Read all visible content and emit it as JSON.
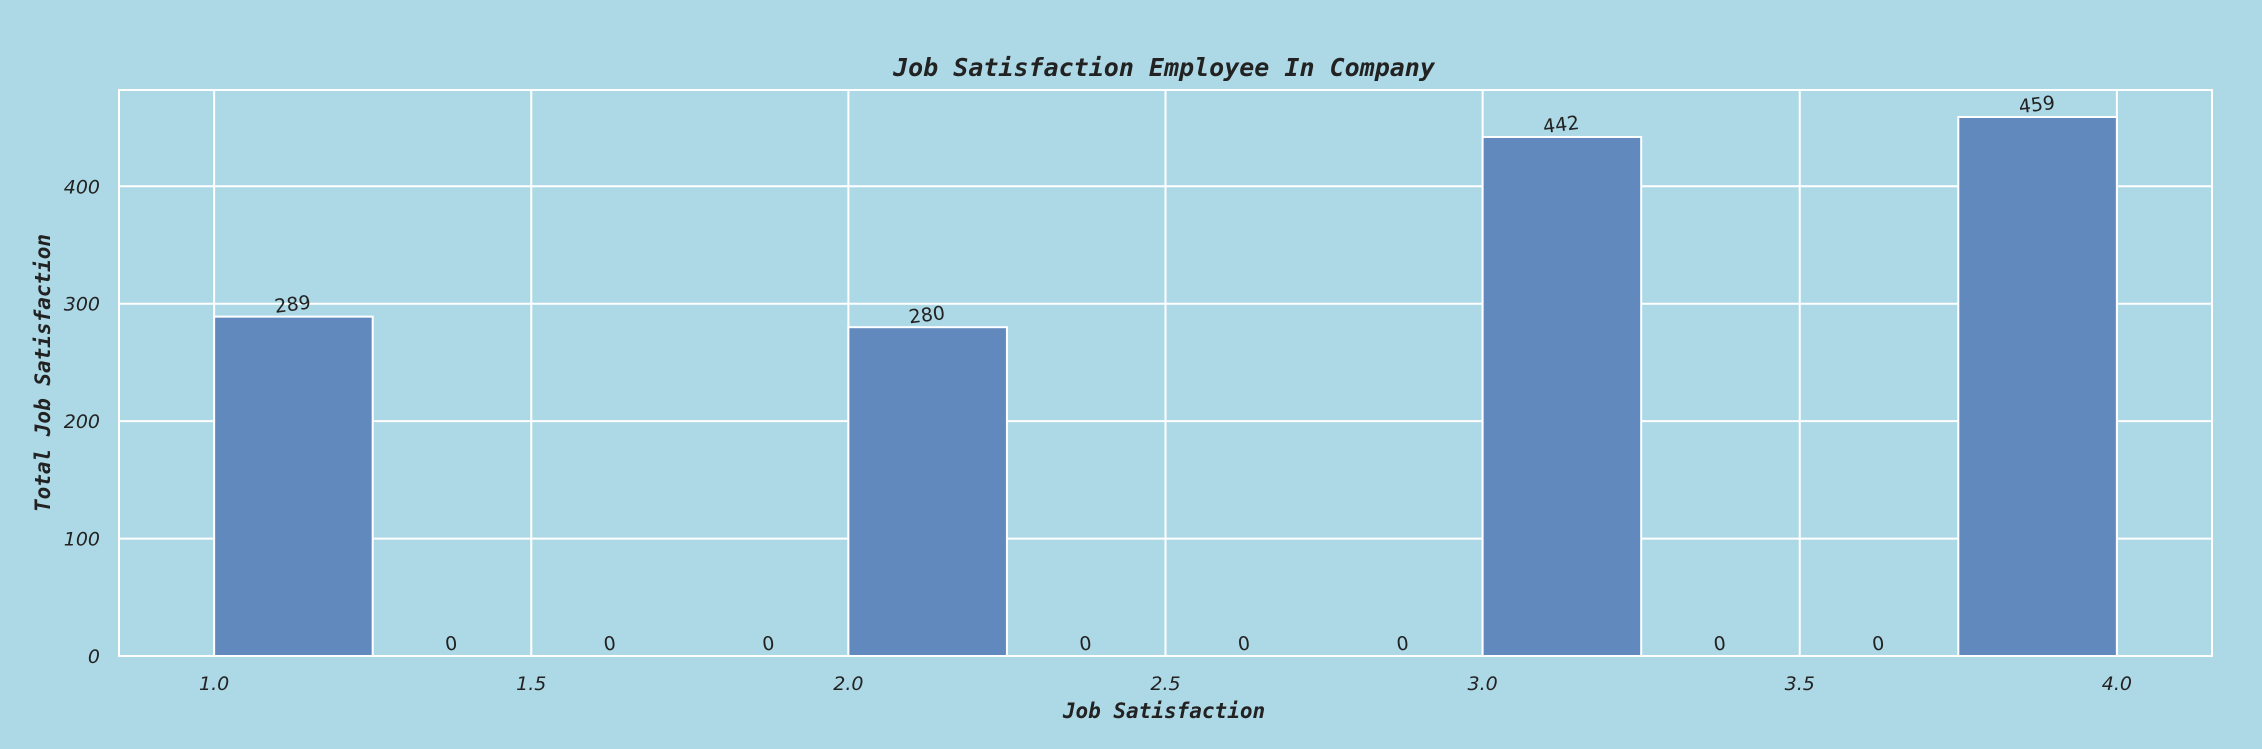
{
  "chart_data": {
    "type": "bar",
    "title": "Job Satisfaction Employee In Company",
    "xlabel": "Job Satisfaction",
    "ylabel": "Total Job Satisfaction",
    "xlim": [
      0.85,
      4.15
    ],
    "ylim": [
      0,
      482
    ],
    "xticks": [
      "1.0",
      "1.5",
      "2.0",
      "2.5",
      "3.0",
      "3.5",
      "4.0"
    ],
    "yticks": [
      "0",
      "100",
      "200",
      "300",
      "400"
    ],
    "bin_width": 0.25,
    "bins": [
      {
        "start": 1.0,
        "value": 289
      },
      {
        "start": 1.25,
        "value": 0
      },
      {
        "start": 1.5,
        "value": 0
      },
      {
        "start": 1.75,
        "value": 0
      },
      {
        "start": 2.0,
        "value": 280
      },
      {
        "start": 2.25,
        "value": 0
      },
      {
        "start": 2.5,
        "value": 0
      },
      {
        "start": 2.75,
        "value": 0
      },
      {
        "start": 3.0,
        "value": 442
      },
      {
        "start": 3.25,
        "value": 0
      },
      {
        "start": 3.5,
        "value": 0
      },
      {
        "start": 3.75,
        "value": 459
      }
    ],
    "grid": true,
    "colors": {
      "background": "#add8e6",
      "bar": "#6289bd",
      "grid": "#ffffff",
      "text": "#222222"
    }
  }
}
